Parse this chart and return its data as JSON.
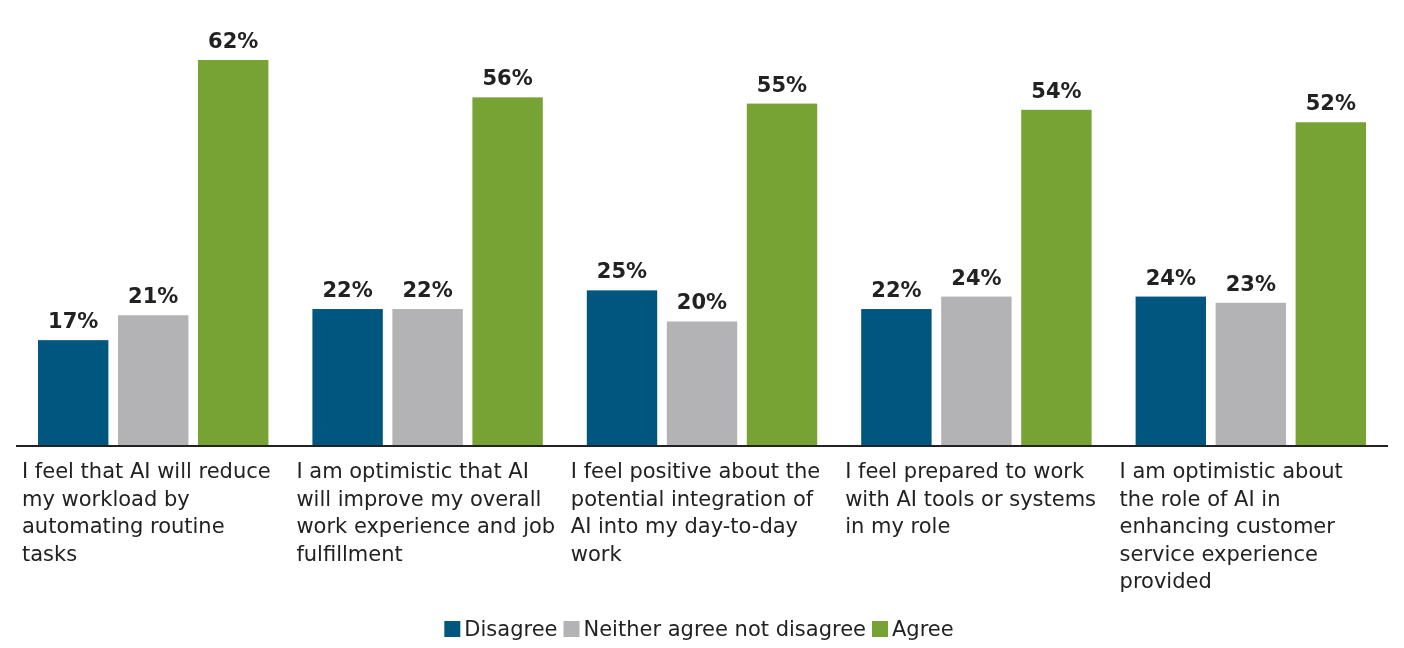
{
  "chart_data": {
    "type": "bar",
    "categories": [
      "I feel that AI will reduce my workload by automating routine tasks",
      "I am optimistic that AI will improve my overall work experience and job fulfillment",
      "I feel positive about the potential integration of AI into my day-to-day work",
      "I feel prepared to work with AI tools or systems in my role",
      "I am optimistic about the role of AI in enhancing customer service experience provided"
    ],
    "series": [
      {
        "name": "Disagree",
        "color": "#00567f",
        "values": [
          17,
          22,
          25,
          22,
          24
        ],
        "value_labels": [
          "17%",
          "22%",
          "25%",
          "22%",
          "24%"
        ]
      },
      {
        "name": "Neither agree not disagree",
        "color": "#b3b3b5",
        "values": [
          21,
          22,
          20,
          24,
          23
        ],
        "value_labels": [
          "21%",
          "22%",
          "20%",
          "24%",
          "23%"
        ]
      },
      {
        "name": "Agree",
        "color": "#76a334",
        "values": [
          62,
          56,
          55,
          54,
          52
        ],
        "value_labels": [
          "62%",
          "56%",
          "55%",
          "54%",
          "52%"
        ]
      }
    ],
    "legend": "bottom"
  }
}
